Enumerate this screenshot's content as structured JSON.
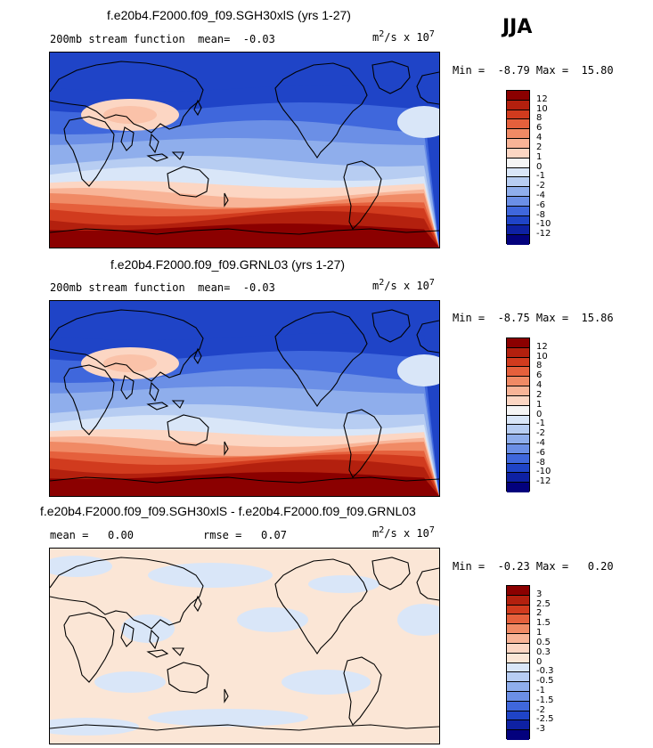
{
  "season": "JJA",
  "units_html": "m<sup>2</sup>/s x 10<sup>7</sup>",
  "panels": [
    {
      "title": "f.e20b4.F2000.f09_f09.SGH30xlS (yrs 1-27)",
      "subtitle": "200mb stream function  mean=  -0.03",
      "minmax": "Min =  -8.79 Max =  15.80"
    },
    {
      "title": "f.e20b4.F2000.f09_f09.GRNL03 (yrs 1-27)",
      "subtitle": "200mb stream function  mean=  -0.03",
      "minmax": "Min =  -8.75 Max =  15.86"
    },
    {
      "title": "f.e20b4.F2000.f09_f09.SGH30xlS - f.e20b4.F2000.f09_f09.GRNL03",
      "subtitle_left": "mean =   0.00",
      "subtitle_right": "rmse =   0.07",
      "minmax": "Min =  -0.23 Max =   0.20"
    }
  ],
  "chart_data": [
    {
      "type": "heatmap",
      "title": "f.e20b4.F2000.f09_f09.SGH30xlS (yrs 1-27)",
      "variable": "200mb stream function",
      "units": "m2/s x 10^7",
      "mean": -0.03,
      "min": -8.79,
      "max": 15.8,
      "colorbar_levels": [
        "12",
        "10",
        "8",
        "6",
        "4",
        "2",
        "1",
        "0",
        "-1",
        "-2",
        "-4",
        "-6",
        "-8",
        "-10",
        "-12"
      ],
      "colorbar_colors": [
        "#8b0000",
        "#b3200e",
        "#d13b1e",
        "#e5603c",
        "#f08a65",
        "#f8b497",
        "#fcd6c3",
        "#f5f5f5",
        "#d9e6f8",
        "#b7cdf2",
        "#8faeec",
        "#6b8fe6",
        "#3f67dc",
        "#1f44c7",
        "#0e21a3",
        "#03017d"
      ]
    },
    {
      "type": "heatmap",
      "title": "f.e20b4.F2000.f09_f09.GRNL03 (yrs 1-27)",
      "variable": "200mb stream function",
      "units": "m2/s x 10^7",
      "mean": -0.03,
      "min": -8.75,
      "max": 15.86,
      "colorbar_levels": [
        "12",
        "10",
        "8",
        "6",
        "4",
        "2",
        "1",
        "0",
        "-1",
        "-2",
        "-4",
        "-6",
        "-8",
        "-10",
        "-12"
      ],
      "colorbar_colors": [
        "#8b0000",
        "#b3200e",
        "#d13b1e",
        "#e5603c",
        "#f08a65",
        "#f8b497",
        "#fcd6c3",
        "#f5f5f5",
        "#d9e6f8",
        "#b7cdf2",
        "#8faeec",
        "#6b8fe6",
        "#3f67dc",
        "#1f44c7",
        "#0e21a3",
        "#03017d"
      ]
    },
    {
      "type": "heatmap",
      "title": "f.e20b4.F2000.f09_f09.SGH30xlS - f.e20b4.F2000.f09_f09.GRNL03",
      "units": "m2/s x 10^7",
      "mean": 0.0,
      "rmse": 0.07,
      "min": -0.23,
      "max": 0.2,
      "colorbar_levels": [
        "3",
        "2.5",
        "2",
        "1.5",
        "1",
        "0.5",
        "0.3",
        "0",
        "-0.3",
        "-0.5",
        "-1",
        "-1.5",
        "-2",
        "-2.5",
        "-3"
      ],
      "colorbar_colors": [
        "#8b0000",
        "#b3200e",
        "#d13b1e",
        "#e5603c",
        "#f08a65",
        "#f8b497",
        "#fcd6c3",
        "#fbe6d6",
        "#d9e6f8",
        "#b7cdf2",
        "#8faeec",
        "#6b8fe6",
        "#3f67dc",
        "#1f44c7",
        "#0e21a3",
        "#03017d"
      ]
    }
  ]
}
